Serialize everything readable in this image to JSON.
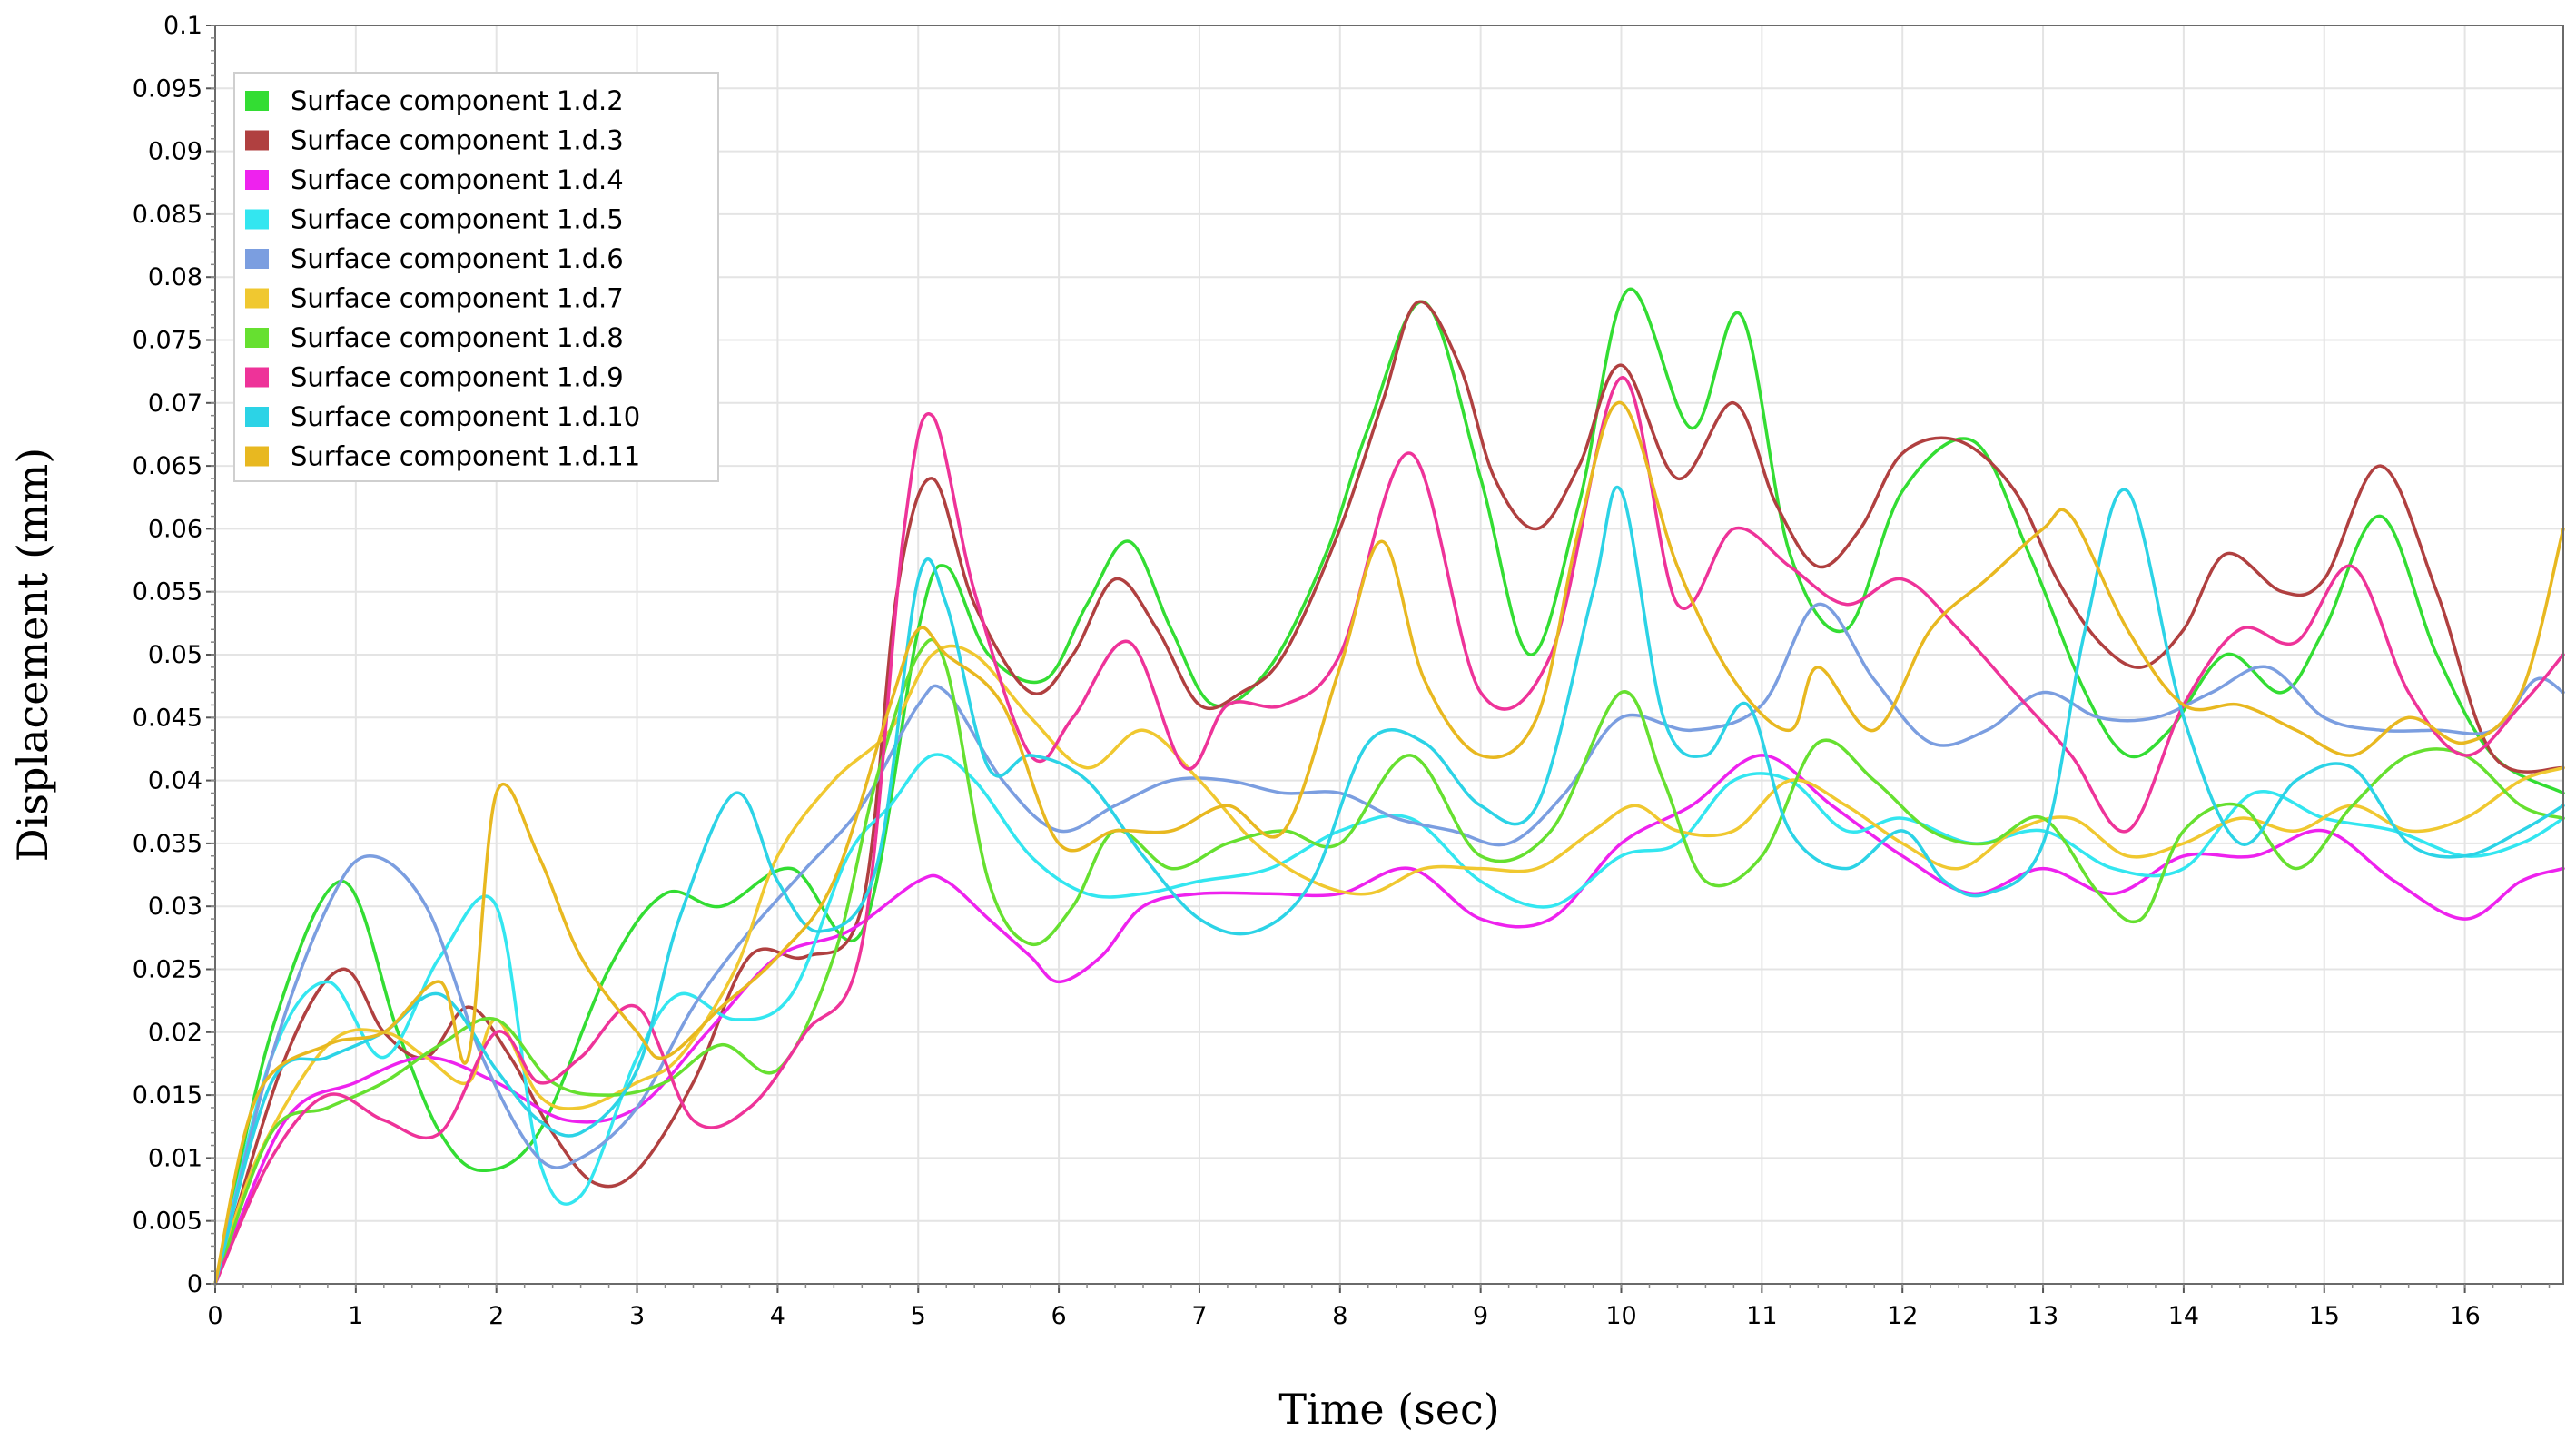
{
  "chart_data": {
    "type": "line",
    "title": "",
    "xlabel": "Time (sec)",
    "ylabel": "Displacement  (mm)",
    "xlim": [
      0,
      16.7
    ],
    "ylim": [
      0,
      0.1
    ],
    "xticks": [
      "0",
      "1",
      "2",
      "3",
      "4",
      "5",
      "6",
      "7",
      "8",
      "9",
      "10",
      "11",
      "12",
      "13",
      "14",
      "15",
      "16"
    ],
    "yticks": [
      "0",
      "0.005",
      "0.01",
      "0.015",
      "0.02",
      "0.025",
      "0.03",
      "0.035",
      "0.04",
      "0.045",
      "0.05",
      "0.055",
      "0.06",
      "0.065",
      "0.07",
      "0.075",
      "0.08",
      "0.085",
      "0.09",
      "0.095",
      "0.1"
    ],
    "grid": true,
    "legend_position": "top-left",
    "series": [
      {
        "name": "Surface component 1.d.2",
        "color": "#33dd33",
        "x": [
          0,
          0.4,
          0.9,
          1.3,
          1.6,
          1.9,
          2.3,
          2.8,
          3.2,
          3.6,
          4.1,
          4.6,
          5.0,
          5.2,
          5.5,
          5.9,
          6.2,
          6.5,
          6.8,
          7.1,
          7.5,
          7.9,
          8.2,
          8.6,
          9.0,
          9.35,
          9.7,
          10.05,
          10.5,
          10.85,
          11.2,
          11.6,
          12.0,
          12.5,
          12.9,
          13.3,
          13.6,
          13.9,
          14.3,
          14.7,
          15.0,
          15.4,
          15.8,
          16.2,
          16.7
        ],
        "y": [
          0,
          0.02,
          0.032,
          0.02,
          0.012,
          0.009,
          0.012,
          0.025,
          0.031,
          0.03,
          0.033,
          0.028,
          0.052,
          0.057,
          0.05,
          0.048,
          0.054,
          0.059,
          0.052,
          0.046,
          0.049,
          0.058,
          0.068,
          0.078,
          0.064,
          0.05,
          0.062,
          0.079,
          0.068,
          0.077,
          0.058,
          0.052,
          0.063,
          0.067,
          0.058,
          0.047,
          0.042,
          0.044,
          0.05,
          0.047,
          0.052,
          0.061,
          0.05,
          0.042,
          0.039
        ]
      },
      {
        "name": "Surface component 1.d.3",
        "color": "#b04040",
        "x": [
          0,
          0.5,
          0.9,
          1.2,
          1.5,
          1.8,
          2.1,
          2.4,
          2.7,
          3.0,
          3.4,
          3.8,
          4.2,
          4.6,
          4.85,
          5.1,
          5.4,
          5.8,
          6.1,
          6.4,
          6.7,
          7.0,
          7.3,
          7.6,
          8.0,
          8.3,
          8.55,
          8.85,
          9.1,
          9.4,
          9.7,
          10.0,
          10.4,
          10.8,
          11.1,
          11.4,
          11.7,
          12.0,
          12.4,
          12.8,
          13.1,
          13.4,
          13.7,
          14.0,
          14.3,
          14.7,
          15.0,
          15.4,
          15.8,
          16.2,
          16.7
        ],
        "y": [
          0,
          0.018,
          0.025,
          0.02,
          0.018,
          0.022,
          0.018,
          0.012,
          0.008,
          0.009,
          0.016,
          0.026,
          0.026,
          0.03,
          0.055,
          0.064,
          0.054,
          0.047,
          0.05,
          0.056,
          0.052,
          0.046,
          0.047,
          0.05,
          0.06,
          0.07,
          0.078,
          0.073,
          0.064,
          0.06,
          0.065,
          0.073,
          0.064,
          0.07,
          0.062,
          0.057,
          0.06,
          0.066,
          0.067,
          0.063,
          0.056,
          0.051,
          0.049,
          0.052,
          0.058,
          0.055,
          0.056,
          0.065,
          0.055,
          0.042,
          0.041
        ]
      },
      {
        "name": "Surface component 1.d.4",
        "color": "#ee22ee",
        "x": [
          0,
          0.5,
          1.0,
          1.5,
          2.0,
          2.5,
          3.0,
          3.5,
          4.0,
          4.5,
          5.0,
          5.2,
          5.5,
          5.8,
          6.0,
          6.3,
          6.6,
          7.0,
          7.5,
          8.0,
          8.5,
          9.0,
          9.5,
          10.0,
          10.5,
          11.0,
          11.5,
          12.0,
          12.5,
          13.0,
          13.5,
          14.0,
          14.5,
          15.0,
          15.5,
          16.0,
          16.4,
          16.7
        ],
        "y": [
          0,
          0.013,
          0.016,
          0.018,
          0.016,
          0.013,
          0.014,
          0.02,
          0.026,
          0.028,
          0.032,
          0.032,
          0.029,
          0.026,
          0.024,
          0.026,
          0.03,
          0.031,
          0.031,
          0.031,
          0.033,
          0.029,
          0.029,
          0.035,
          0.038,
          0.042,
          0.038,
          0.034,
          0.031,
          0.033,
          0.031,
          0.034,
          0.034,
          0.036,
          0.032,
          0.029,
          0.032,
          0.033
        ]
      },
      {
        "name": "Surface component 1.d.5",
        "color": "#33e6f0",
        "x": [
          0,
          0.4,
          0.8,
          1.2,
          1.6,
          2.0,
          2.3,
          2.6,
          3.0,
          3.3,
          3.7,
          4.1,
          4.5,
          4.8,
          5.1,
          5.4,
          5.8,
          6.2,
          6.6,
          7.0,
          7.5,
          8.0,
          8.5,
          9.0,
          9.5,
          10.0,
          10.4,
          10.8,
          11.2,
          11.6,
          12.0,
          12.5,
          13.0,
          13.5,
          14.0,
          14.5,
          15.0,
          15.5,
          16.0,
          16.4,
          16.7
        ],
        "y": [
          0,
          0.018,
          0.024,
          0.018,
          0.026,
          0.03,
          0.01,
          0.007,
          0.018,
          0.023,
          0.021,
          0.023,
          0.034,
          0.038,
          0.042,
          0.04,
          0.034,
          0.031,
          0.031,
          0.032,
          0.033,
          0.036,
          0.037,
          0.032,
          0.03,
          0.034,
          0.035,
          0.04,
          0.04,
          0.036,
          0.037,
          0.035,
          0.036,
          0.033,
          0.033,
          0.039,
          0.037,
          0.036,
          0.034,
          0.035,
          0.037
        ]
      },
      {
        "name": "Surface component 1.d.6",
        "color": "#7b9ee0",
        "x": [
          0,
          0.4,
          0.8,
          1.1,
          1.5,
          1.9,
          2.3,
          2.6,
          3.0,
          3.4,
          3.8,
          4.2,
          4.6,
          5.0,
          5.2,
          5.6,
          6.0,
          6.4,
          6.8,
          7.2,
          7.6,
          8.0,
          8.4,
          8.8,
          9.2,
          9.6,
          10.0,
          10.5,
          11.0,
          11.4,
          11.8,
          12.2,
          12.6,
          13.0,
          13.4,
          13.8,
          14.2,
          14.6,
          15.0,
          15.4,
          15.8,
          16.2,
          16.5,
          16.7
        ],
        "y": [
          0,
          0.018,
          0.03,
          0.034,
          0.03,
          0.018,
          0.01,
          0.01,
          0.014,
          0.022,
          0.028,
          0.033,
          0.038,
          0.046,
          0.047,
          0.04,
          0.036,
          0.038,
          0.04,
          0.04,
          0.039,
          0.039,
          0.037,
          0.036,
          0.035,
          0.039,
          0.045,
          0.044,
          0.046,
          0.054,
          0.048,
          0.043,
          0.044,
          0.047,
          0.045,
          0.045,
          0.047,
          0.049,
          0.045,
          0.044,
          0.044,
          0.044,
          0.048,
          0.047
        ]
      },
      {
        "name": "Surface component 1.d.7",
        "color": "#f0c830",
        "x": [
          0,
          0.3,
          0.8,
          1.2,
          1.5,
          1.8,
          2.0,
          2.3,
          2.6,
          3.0,
          3.3,
          3.7,
          4.0,
          4.4,
          4.8,
          5.1,
          5.4,
          5.8,
          6.2,
          6.6,
          7.0,
          7.4,
          7.8,
          8.2,
          8.6,
          9.0,
          9.4,
          9.8,
          10.1,
          10.4,
          10.8,
          11.2,
          11.6,
          12.0,
          12.4,
          12.8,
          13.2,
          13.6,
          14.0,
          14.4,
          14.8,
          15.2,
          15.6,
          16.0,
          16.4,
          16.7
        ],
        "y": [
          0,
          0.01,
          0.019,
          0.02,
          0.018,
          0.016,
          0.021,
          0.015,
          0.014,
          0.016,
          0.018,
          0.025,
          0.034,
          0.04,
          0.044,
          0.05,
          0.05,
          0.045,
          0.041,
          0.044,
          0.04,
          0.035,
          0.032,
          0.031,
          0.033,
          0.033,
          0.033,
          0.036,
          0.038,
          0.036,
          0.036,
          0.04,
          0.038,
          0.035,
          0.033,
          0.036,
          0.037,
          0.034,
          0.035,
          0.037,
          0.036,
          0.038,
          0.036,
          0.037,
          0.04,
          0.041
        ]
      },
      {
        "name": "Surface component 1.d.8",
        "color": "#66e030",
        "x": [
          0,
          0.4,
          0.8,
          1.2,
          1.6,
          2.0,
          2.4,
          2.8,
          3.2,
          3.6,
          4.0,
          4.4,
          4.7,
          5.0,
          5.2,
          5.5,
          5.8,
          6.1,
          6.4,
          6.8,
          7.2,
          7.6,
          8.0,
          8.5,
          9.0,
          9.5,
          10.0,
          10.3,
          10.6,
          11.0,
          11.4,
          11.8,
          12.2,
          12.6,
          13.0,
          13.4,
          13.7,
          14.0,
          14.4,
          14.8,
          15.2,
          15.6,
          16.0,
          16.4,
          16.7
        ],
        "y": [
          0,
          0.012,
          0.014,
          0.016,
          0.019,
          0.021,
          0.016,
          0.015,
          0.016,
          0.019,
          0.017,
          0.026,
          0.04,
          0.05,
          0.049,
          0.032,
          0.027,
          0.03,
          0.036,
          0.033,
          0.035,
          0.036,
          0.035,
          0.042,
          0.034,
          0.036,
          0.047,
          0.04,
          0.032,
          0.034,
          0.043,
          0.04,
          0.036,
          0.035,
          0.037,
          0.031,
          0.029,
          0.036,
          0.038,
          0.033,
          0.038,
          0.042,
          0.042,
          0.038,
          0.037
        ]
      },
      {
        "name": "Surface component 1.d.9",
        "color": "#ee3399",
        "x": [
          0,
          0.4,
          0.8,
          1.2,
          1.6,
          2.0,
          2.3,
          2.6,
          3.0,
          3.4,
          3.8,
          4.2,
          4.6,
          4.9,
          5.1,
          5.4,
          5.8,
          6.1,
          6.5,
          6.9,
          7.2,
          7.6,
          8.0,
          8.5,
          9.0,
          9.5,
          10.0,
          10.4,
          10.8,
          11.2,
          11.6,
          12.0,
          12.4,
          12.8,
          13.2,
          13.6,
          14.0,
          14.4,
          14.8,
          15.2,
          15.6,
          16.0,
          16.4,
          16.7
        ],
        "y": [
          0,
          0.01,
          0.015,
          0.013,
          0.012,
          0.02,
          0.016,
          0.018,
          0.022,
          0.013,
          0.014,
          0.02,
          0.027,
          0.06,
          0.069,
          0.055,
          0.042,
          0.045,
          0.051,
          0.041,
          0.046,
          0.046,
          0.05,
          0.066,
          0.047,
          0.05,
          0.072,
          0.054,
          0.06,
          0.057,
          0.054,
          0.056,
          0.052,
          0.047,
          0.042,
          0.036,
          0.046,
          0.052,
          0.051,
          0.057,
          0.047,
          0.042,
          0.046,
          0.05
        ]
      },
      {
        "name": "Surface component 1.d.10",
        "color": "#2cd3e6",
        "x": [
          0,
          0.4,
          0.8,
          1.2,
          1.6,
          2.0,
          2.3,
          2.6,
          3.0,
          3.3,
          3.7,
          4.0,
          4.3,
          4.7,
          5.0,
          5.2,
          5.5,
          5.8,
          6.2,
          6.6,
          7.0,
          7.4,
          7.8,
          8.2,
          8.6,
          9.0,
          9.4,
          9.8,
          10.0,
          10.3,
          10.6,
          10.9,
          11.2,
          11.6,
          12.0,
          12.3,
          12.6,
          13.0,
          13.3,
          13.6,
          14.0,
          14.4,
          14.8,
          15.2,
          15.6,
          16.0,
          16.4,
          16.7
        ],
        "y": [
          0,
          0.016,
          0.018,
          0.02,
          0.023,
          0.017,
          0.013,
          0.012,
          0.017,
          0.029,
          0.039,
          0.032,
          0.028,
          0.033,
          0.056,
          0.054,
          0.041,
          0.042,
          0.04,
          0.034,
          0.029,
          0.028,
          0.032,
          0.043,
          0.043,
          0.038,
          0.038,
          0.055,
          0.063,
          0.045,
          0.042,
          0.046,
          0.036,
          0.033,
          0.036,
          0.032,
          0.031,
          0.035,
          0.052,
          0.063,
          0.045,
          0.035,
          0.04,
          0.041,
          0.035,
          0.034,
          0.036,
          0.038
        ]
      },
      {
        "name": "Surface component 1.d.11",
        "color": "#e8b820",
        "x": [
          0,
          0.3,
          0.8,
          1.2,
          1.6,
          1.8,
          2.0,
          2.3,
          2.6,
          3.0,
          3.2,
          3.6,
          4.0,
          4.4,
          4.8,
          5.0,
          5.2,
          5.6,
          6.0,
          6.4,
          6.8,
          7.2,
          7.6,
          8.0,
          8.3,
          8.6,
          9.0,
          9.4,
          9.7,
          10.0,
          10.4,
          10.8,
          11.2,
          11.4,
          11.8,
          12.2,
          12.6,
          13.0,
          13.2,
          13.6,
          14.0,
          14.4,
          14.8,
          15.2,
          15.6,
          16.0,
          16.4,
          16.7
        ],
        "y": [
          0,
          0.015,
          0.019,
          0.02,
          0.024,
          0.018,
          0.039,
          0.034,
          0.026,
          0.02,
          0.018,
          0.022,
          0.026,
          0.032,
          0.046,
          0.052,
          0.05,
          0.046,
          0.035,
          0.036,
          0.036,
          0.038,
          0.036,
          0.049,
          0.059,
          0.048,
          0.042,
          0.045,
          0.06,
          0.07,
          0.057,
          0.048,
          0.044,
          0.049,
          0.044,
          0.052,
          0.056,
          0.06,
          0.061,
          0.052,
          0.046,
          0.046,
          0.044,
          0.042,
          0.045,
          0.043,
          0.047,
          0.06
        ]
      }
    ]
  }
}
